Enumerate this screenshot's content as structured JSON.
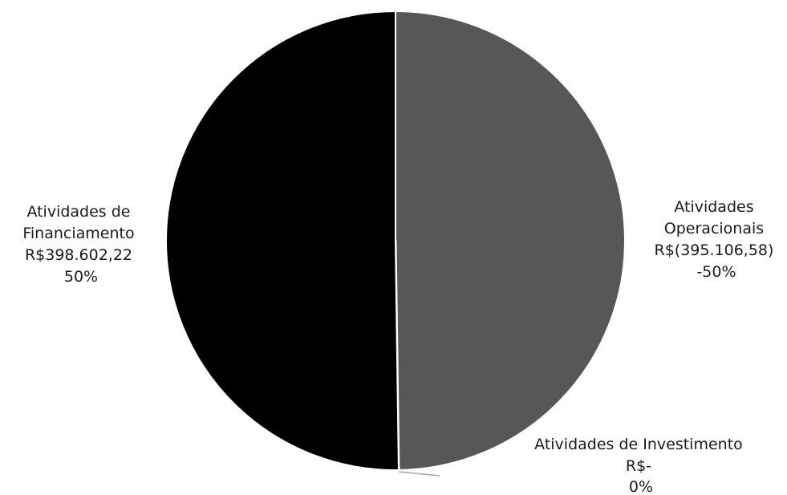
{
  "chart_data": {
    "type": "pie",
    "title": "",
    "slices": [
      {
        "category": "Atividades Operacionais",
        "value": -395106.58,
        "value_label": "R$(395.106,58)",
        "percent_label": "-50%",
        "color": "#575757"
      },
      {
        "category": "Atividades de Investimento",
        "value": 0,
        "value_label": "R$-",
        "percent_label": "0%",
        "color": "#a6a6a6"
      },
      {
        "category": "Atividades de Financiamento",
        "value": 398602.22,
        "value_label": "R$398.602,22",
        "percent_label": "50%",
        "color": "#000000"
      }
    ],
    "label_lines": {
      "operacionais": [
        "Atividades",
        "Operacionais",
        "R$(395.106,58)",
        "-50%"
      ],
      "investimento": [
        "Atividades de Investimento",
        "R$-",
        "0%"
      ],
      "financiamento": [
        "Atividades de",
        "Financiamento",
        "R$398.602,22",
        "50%"
      ]
    },
    "legend": "none"
  }
}
